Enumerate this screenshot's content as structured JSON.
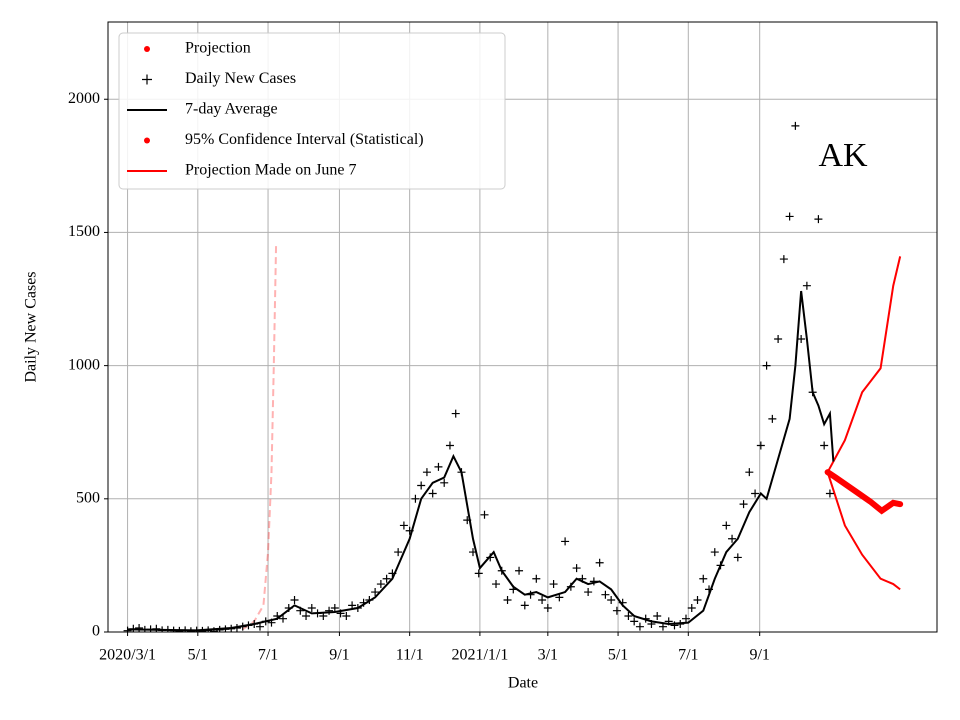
{
  "chart_data": {
    "type": "line",
    "xlabel": "Date",
    "ylabel": "Daily New Cases",
    "annotation": "AK",
    "xlim": [
      -17,
      703
    ],
    "ylim": [
      0,
      2290
    ],
    "xticks": [
      {
        "value": 0,
        "label": "2020/3/1"
      },
      {
        "value": 61,
        "label": "5/1"
      },
      {
        "value": 122,
        "label": "7/1"
      },
      {
        "value": 184,
        "label": "9/1"
      },
      {
        "value": 245,
        "label": "11/1"
      },
      {
        "value": 306,
        "label": "2021/1/1"
      },
      {
        "value": 365,
        "label": "3/1"
      },
      {
        "value": 426,
        "label": "5/1"
      },
      {
        "value": 487,
        "label": "7/1"
      },
      {
        "value": 549,
        "label": "9/1"
      }
    ],
    "yticks": [
      0,
      500,
      1000,
      1500,
      2000
    ],
    "grid": true,
    "legend": "upper left",
    "series": [
      {
        "name": "Projection",
        "color": "#ff0000",
        "marker": "dot",
        "draw": "thick",
        "x": [
          608,
          615,
          625,
          635,
          645,
          655,
          660,
          665,
          671
        ],
        "values": [
          600,
          580,
          550,
          520,
          490,
          455,
          470,
          485,
          480
        ]
      },
      {
        "name": "Daily New Cases",
        "color": "#000000",
        "marker": "plus",
        "draw": "points",
        "x": [
          0,
          5,
          10,
          15,
          20,
          25,
          30,
          35,
          40,
          45,
          50,
          55,
          60,
          65,
          70,
          75,
          80,
          85,
          90,
          95,
          100,
          105,
          110,
          115,
          120,
          125,
          130,
          135,
          140,
          145,
          150,
          155,
          160,
          165,
          170,
          175,
          180,
          185,
          190,
          195,
          200,
          205,
          210,
          215,
          220,
          225,
          230,
          235,
          240,
          245,
          250,
          255,
          260,
          265,
          270,
          275,
          280,
          285,
          290,
          295,
          300,
          305,
          310,
          315,
          320,
          325,
          330,
          335,
          340,
          345,
          350,
          355,
          360,
          365,
          370,
          375,
          380,
          385,
          390,
          395,
          400,
          405,
          410,
          415,
          420,
          425,
          430,
          435,
          440,
          445,
          450,
          455,
          460,
          465,
          470,
          475,
          480,
          485,
          490,
          495,
          500,
          505,
          510,
          515,
          520,
          525,
          530,
          535,
          540,
          545,
          550,
          555,
          560,
          565,
          570,
          575,
          580,
          585,
          590,
          595,
          600,
          605,
          610
        ],
        "values": [
          5,
          12,
          15,
          8,
          10,
          12,
          6,
          8,
          5,
          4,
          6,
          3,
          5,
          4,
          6,
          3,
          8,
          10,
          12,
          15,
          20,
          25,
          30,
          20,
          40,
          35,
          60,
          50,
          90,
          120,
          80,
          60,
          90,
          70,
          60,
          80,
          90,
          70,
          60,
          100,
          90,
          110,
          120,
          150,
          180,
          200,
          220,
          300,
          400,
          380,
          500,
          550,
          600,
          520,
          620,
          560,
          700,
          820,
          600,
          420,
          300,
          220,
          440,
          280,
          180,
          230,
          120,
          160,
          230,
          100,
          140,
          200,
          120,
          90,
          180,
          130,
          340,
          170,
          240,
          200,
          150,
          190,
          260,
          140,
          120,
          80,
          110,
          60,
          40,
          20,
          50,
          30,
          60,
          20,
          40,
          25,
          30,
          50,
          90,
          120,
          200,
          160,
          300,
          250,
          400,
          350,
          280,
          480,
          600,
          520,
          700,
          1000,
          800,
          1100,
          1400,
          1560,
          1900,
          1100,
          1300,
          900,
          1550,
          700,
          520
        ]
      },
      {
        "name": "7-day Average",
        "color": "#000000",
        "marker": "line",
        "draw": "line",
        "x": [
          0,
          30,
          60,
          90,
          110,
          130,
          145,
          160,
          180,
          200,
          215,
          230,
          245,
          255,
          265,
          275,
          283,
          290,
          300,
          306,
          312,
          318,
          325,
          335,
          345,
          355,
          365,
          380,
          390,
          400,
          410,
          420,
          430,
          440,
          455,
          470,
          487,
          500,
          510,
          520,
          530,
          540,
          550,
          555,
          565,
          575,
          580,
          585,
          590,
          595,
          600,
          605,
          610,
          613
        ],
        "values": [
          10,
          8,
          6,
          15,
          30,
          50,
          100,
          70,
          75,
          90,
          130,
          200,
          350,
          500,
          560,
          580,
          660,
          600,
          350,
          240,
          270,
          300,
          230,
          170,
          140,
          150,
          130,
          150,
          200,
          180,
          190,
          160,
          100,
          60,
          40,
          30,
          35,
          80,
          200,
          300,
          350,
          450,
          520,
          500,
          650,
          800,
          1000,
          1280,
          1100,
          900,
          850,
          780,
          820,
          640
        ]
      },
      {
        "name": "95% Confidence Interval (Statistical)",
        "color": "#ff0000",
        "marker": "dot",
        "draw": "band",
        "x": [
          608,
          623,
          638,
          654,
          665,
          671
        ],
        "upper": [
          600,
          720,
          900,
          990,
          1300,
          1410
        ],
        "lower": [
          600,
          400,
          290,
          200,
          180,
          160
        ]
      },
      {
        "name": "Projection Made on June 7",
        "color": "#ff0000",
        "marker": "line",
        "draw": "dashed",
        "x": [
          100,
          110,
          118,
          122,
          125,
          127,
          129
        ],
        "values": [
          10,
          40,
          100,
          300,
          600,
          1000,
          1460
        ]
      }
    ]
  }
}
